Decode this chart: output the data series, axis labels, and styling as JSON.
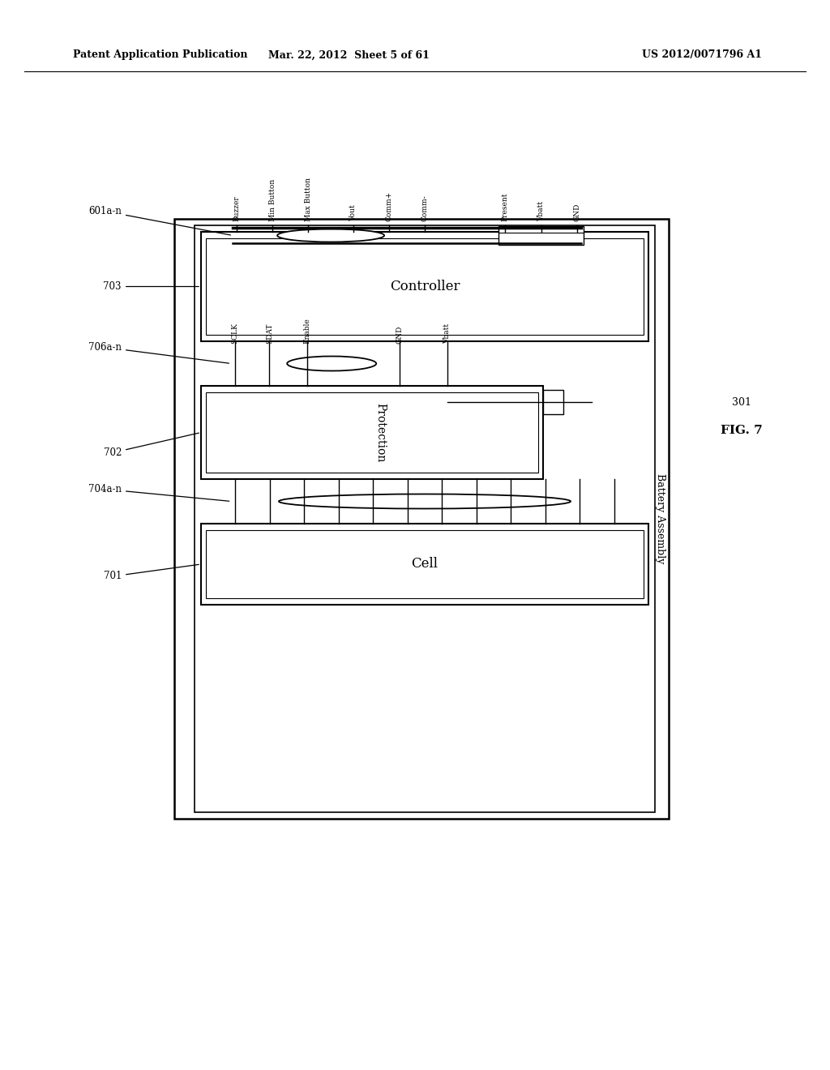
{
  "title_left": "Patent Application Publication",
  "title_center": "Mar. 22, 2012  Sheet 5 of 61",
  "title_right": "US 2012/0071796 A1",
  "fig_label": "FIG. 7",
  "fig_number": "301",
  "background_color": "#ffffff",
  "connector_top_labels": [
    "Buzzer",
    "Min Button",
    "Max Button",
    "Vout",
    "Comm+",
    "Comm-",
    "Present",
    "Vbatt",
    "GND"
  ],
  "protection_labels": [
    "SCLK",
    "SDAT",
    "Enable",
    "GND",
    "Vbatt"
  ],
  "battery_assembly_label": "Battery Assembly",
  "controller_label": "Controller",
  "protection_label": "Protection",
  "cell_label": "Cell",
  "label_601an": "601a-n",
  "label_703": "703",
  "label_706an": "706a-n",
  "label_702": "702",
  "label_704an": "704a-n",
  "label_701": "701"
}
